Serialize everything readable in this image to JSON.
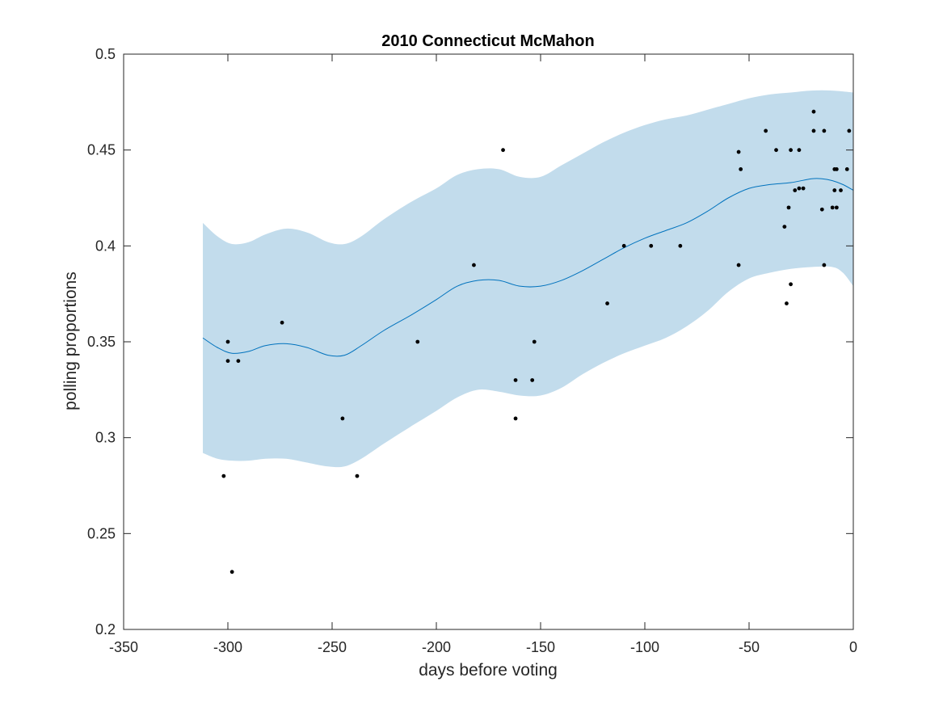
{
  "chart_data": {
    "type": "scatter",
    "title": "2010 Connecticut McMahon",
    "xlabel": "days before voting",
    "ylabel": "polling proportions",
    "xlim": [
      -350,
      0
    ],
    "ylim": [
      0.2,
      0.5
    ],
    "xticks": [
      -350,
      -300,
      -250,
      -200,
      -150,
      -100,
      -50,
      0
    ],
    "yticks": [
      0.2,
      0.25,
      0.3,
      0.35,
      0.4,
      0.45,
      0.5
    ],
    "xtick_labels": [
      "-350",
      "-300",
      "-250",
      "-200",
      "-150",
      "-100",
      "-50",
      "0"
    ],
    "ytick_labels": [
      "0.2",
      "0.25",
      "0.3",
      "0.35",
      "0.4",
      "0.45",
      "0.5"
    ],
    "grid": false,
    "colors": {
      "band": "#c2dcec",
      "line": "#0072bd",
      "points": "#000000",
      "axes": "#262626"
    },
    "series": [
      {
        "kind": "points",
        "points": [
          [
            -302,
            0.28
          ],
          [
            -300,
            0.35
          ],
          [
            -300,
            0.34
          ],
          [
            -298,
            0.23
          ],
          [
            -295,
            0.34
          ],
          [
            -274,
            0.36
          ],
          [
            -245,
            0.31
          ],
          [
            -238,
            0.28
          ],
          [
            -209,
            0.35
          ],
          [
            -182,
            0.39
          ],
          [
            -168,
            0.45
          ],
          [
            -162,
            0.33
          ],
          [
            -162,
            0.31
          ],
          [
            -154,
            0.33
          ],
          [
            -153,
            0.35
          ],
          [
            -118,
            0.37
          ],
          [
            -110,
            0.4
          ],
          [
            -97,
            0.4
          ],
          [
            -83,
            0.4
          ],
          [
            -55,
            0.449
          ],
          [
            -55,
            0.39
          ],
          [
            -54,
            0.44
          ],
          [
            -42,
            0.46
          ],
          [
            -37,
            0.45
          ],
          [
            -33,
            0.41
          ],
          [
            -32,
            0.37
          ],
          [
            -31,
            0.42
          ],
          [
            -30,
            0.45
          ],
          [
            -30,
            0.38
          ],
          [
            -28,
            0.429
          ],
          [
            -26,
            0.43
          ],
          [
            -26,
            0.45
          ],
          [
            -24,
            0.43
          ],
          [
            -19,
            0.47
          ],
          [
            -19,
            0.46
          ],
          [
            -15,
            0.419
          ],
          [
            -14,
            0.46
          ],
          [
            -14,
            0.39
          ],
          [
            -10,
            0.42
          ],
          [
            -9,
            0.44
          ],
          [
            -9,
            0.429
          ],
          [
            -8,
            0.44
          ],
          [
            -8,
            0.42
          ],
          [
            -6,
            0.429
          ],
          [
            -3,
            0.44
          ],
          [
            -2,
            0.46
          ]
        ]
      },
      {
        "kind": "mean",
        "points": [
          [
            -312,
            0.352
          ],
          [
            -305,
            0.347
          ],
          [
            -298,
            0.344
          ],
          [
            -290,
            0.345
          ],
          [
            -282,
            0.348
          ],
          [
            -272,
            0.349
          ],
          [
            -262,
            0.347
          ],
          [
            -252,
            0.343
          ],
          [
            -244,
            0.343
          ],
          [
            -236,
            0.348
          ],
          [
            -225,
            0.356
          ],
          [
            -212,
            0.364
          ],
          [
            -200,
            0.372
          ],
          [
            -190,
            0.379
          ],
          [
            -180,
            0.382
          ],
          [
            -170,
            0.382
          ],
          [
            -160,
            0.379
          ],
          [
            -150,
            0.379
          ],
          [
            -140,
            0.382
          ],
          [
            -130,
            0.387
          ],
          [
            -120,
            0.393
          ],
          [
            -110,
            0.399
          ],
          [
            -100,
            0.404
          ],
          [
            -90,
            0.408
          ],
          [
            -80,
            0.412
          ],
          [
            -70,
            0.418
          ],
          [
            -60,
            0.425
          ],
          [
            -50,
            0.43
          ],
          [
            -40,
            0.432
          ],
          [
            -30,
            0.433
          ],
          [
            -20,
            0.435
          ],
          [
            -15,
            0.435
          ],
          [
            -10,
            0.434
          ],
          [
            -5,
            0.432
          ],
          [
            0,
            0.429
          ]
        ]
      },
      {
        "kind": "band",
        "upper": [
          [
            -312,
            0.412
          ],
          [
            -305,
            0.405
          ],
          [
            -298,
            0.401
          ],
          [
            -290,
            0.402
          ],
          [
            -282,
            0.406
          ],
          [
            -272,
            0.409
          ],
          [
            -262,
            0.407
          ],
          [
            -252,
            0.402
          ],
          [
            -244,
            0.401
          ],
          [
            -236,
            0.405
          ],
          [
            -225,
            0.414
          ],
          [
            -212,
            0.423
          ],
          [
            -200,
            0.43
          ],
          [
            -190,
            0.437
          ],
          [
            -180,
            0.44
          ],
          [
            -170,
            0.44
          ],
          [
            -160,
            0.436
          ],
          [
            -150,
            0.436
          ],
          [
            -140,
            0.442
          ],
          [
            -130,
            0.448
          ],
          [
            -120,
            0.454
          ],
          [
            -110,
            0.459
          ],
          [
            -100,
            0.463
          ],
          [
            -90,
            0.466
          ],
          [
            -80,
            0.468
          ],
          [
            -70,
            0.471
          ],
          [
            -60,
            0.474
          ],
          [
            -50,
            0.477
          ],
          [
            -40,
            0.479
          ],
          [
            -30,
            0.48
          ],
          [
            -20,
            0.481
          ],
          [
            -10,
            0.481
          ],
          [
            0,
            0.48
          ]
        ],
        "lower": [
          [
            -312,
            0.292
          ],
          [
            -305,
            0.289
          ],
          [
            -298,
            0.288
          ],
          [
            -290,
            0.288
          ],
          [
            -282,
            0.289
          ],
          [
            -272,
            0.289
          ],
          [
            -262,
            0.287
          ],
          [
            -252,
            0.285
          ],
          [
            -244,
            0.285
          ],
          [
            -236,
            0.289
          ],
          [
            -225,
            0.297
          ],
          [
            -212,
            0.306
          ],
          [
            -200,
            0.314
          ],
          [
            -190,
            0.321
          ],
          [
            -180,
            0.325
          ],
          [
            -170,
            0.324
          ],
          [
            -160,
            0.322
          ],
          [
            -150,
            0.322
          ],
          [
            -140,
            0.326
          ],
          [
            -130,
            0.333
          ],
          [
            -120,
            0.339
          ],
          [
            -110,
            0.344
          ],
          [
            -100,
            0.348
          ],
          [
            -90,
            0.352
          ],
          [
            -80,
            0.358
          ],
          [
            -70,
            0.366
          ],
          [
            -60,
            0.376
          ],
          [
            -50,
            0.383
          ],
          [
            -40,
            0.386
          ],
          [
            -30,
            0.388
          ],
          [
            -20,
            0.389
          ],
          [
            -10,
            0.389
          ],
          [
            -5,
            0.386
          ],
          [
            0,
            0.379
          ]
        ]
      }
    ]
  }
}
